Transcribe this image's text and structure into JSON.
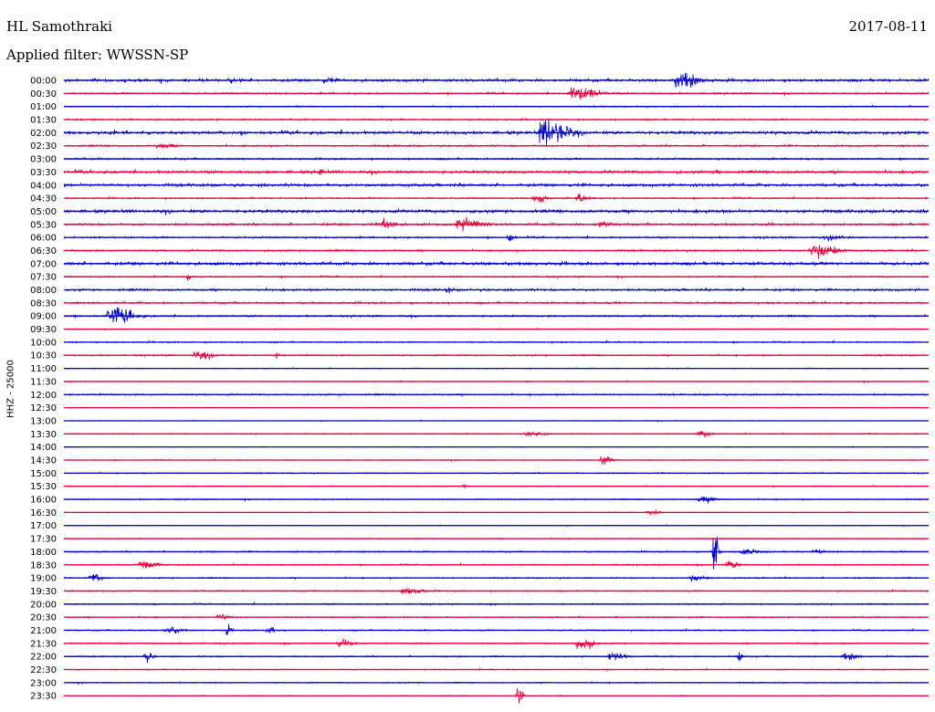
{
  "header": {
    "station": "HL Samothraki",
    "date": "2017-08-11",
    "filter": "Applied filter: WWSSN-SP"
  },
  "colors": {
    "primary_trace": "#0000cc",
    "secondary_trace": "#e8003a",
    "background": "#ffffff"
  },
  "chart_data": {
    "type": "line",
    "subtype": "helicorder-seismogram",
    "ylabel": "HHZ - 25000",
    "row_labels": [
      "00:00",
      "00:30",
      "01:00",
      "01:30",
      "02:00",
      "02:30",
      "03:00",
      "03:30",
      "04:00",
      "04:30",
      "05:00",
      "05:30",
      "06:00",
      "06:30",
      "07:00",
      "07:30",
      "08:00",
      "08:30",
      "09:00",
      "09:30",
      "10:00",
      "10:30",
      "11:00",
      "11:30",
      "12:00",
      "12:30",
      "13:00",
      "13:30",
      "14:00",
      "14:30",
      "15:00",
      "15:30",
      "16:00",
      "16:30",
      "17:00",
      "17:30",
      "18:00",
      "18:30",
      "19:00",
      "19:30",
      "20:00",
      "20:30",
      "21:00",
      "21:30",
      "22:00",
      "22:30",
      "23:00",
      "23:30"
    ],
    "row_duration_minutes": 30,
    "color_alternation": "blue, red",
    "noise_level": [
      1.2,
      0.8,
      0.6,
      0.7,
      1.4,
      0.8,
      0.8,
      1.2,
      1.3,
      0.7,
      1.4,
      1.0,
      0.8,
      0.8,
      1.4,
      0.7,
      1.0,
      0.9,
      0.8,
      0.4,
      0.6,
      0.7,
      0.4,
      0.4,
      0.7,
      0.3,
      0.3,
      0.5,
      0.3,
      0.4,
      0.5,
      0.4,
      0.5,
      0.4,
      0.3,
      0.4,
      0.6,
      0.6,
      0.6,
      0.6,
      0.6,
      0.6,
      0.6,
      0.6,
      0.6,
      0.5,
      0.5,
      0.4
    ],
    "events": [
      {
        "row": 0,
        "minute": 21.2,
        "amplitude": 7,
        "duration_min": 1.2
      },
      {
        "row": 0,
        "minute": 9.0,
        "amplitude": 2,
        "duration_min": 0.6
      },
      {
        "row": 0,
        "minute": 5.7,
        "amplitude": 1.5,
        "duration_min": 0.3
      },
      {
        "row": 1,
        "minute": 17.5,
        "amplitude": 6,
        "duration_min": 1.5
      },
      {
        "row": 4,
        "minute": 16.5,
        "amplitude": 12,
        "duration_min": 1.4
      },
      {
        "row": 5,
        "minute": 3.2,
        "amplitude": 2.5,
        "duration_min": 0.8
      },
      {
        "row": 7,
        "minute": 8.8,
        "amplitude": 2.5,
        "duration_min": 0.3
      },
      {
        "row": 7,
        "minute": 22.6,
        "amplitude": 1.5,
        "duration_min": 0.3
      },
      {
        "row": 9,
        "minute": 16.3,
        "amplitude": 5,
        "duration_min": 0.6
      },
      {
        "row": 9,
        "minute": 17.8,
        "amplitude": 4,
        "duration_min": 0.6
      },
      {
        "row": 11,
        "minute": 11.0,
        "amplitude": 5,
        "duration_min": 0.7
      },
      {
        "row": 11,
        "minute": 13.6,
        "amplitude": 5.5,
        "duration_min": 1.3
      },
      {
        "row": 11,
        "minute": 18.5,
        "amplitude": 3,
        "duration_min": 0.6
      },
      {
        "row": 12,
        "minute": 15.4,
        "amplitude": 4.5,
        "duration_min": 0.3
      },
      {
        "row": 12,
        "minute": 26.5,
        "amplitude": 2,
        "duration_min": 0.8
      },
      {
        "row": 13,
        "minute": 25.9,
        "amplitude": 7,
        "duration_min": 1.3
      },
      {
        "row": 15,
        "minute": 4.2,
        "amplitude": 2.5,
        "duration_min": 0.3
      },
      {
        "row": 16,
        "minute": 13.2,
        "amplitude": 2.5,
        "duration_min": 0.4
      },
      {
        "row": 18,
        "minute": 1.5,
        "amplitude": 8,
        "duration_min": 1.3
      },
      {
        "row": 21,
        "minute": 4.5,
        "amplitude": 3,
        "duration_min": 1.0
      },
      {
        "row": 21,
        "minute": 7.3,
        "amplitude": 2.5,
        "duration_min": 0.4
      },
      {
        "row": 27,
        "minute": 16.0,
        "amplitude": 2,
        "duration_min": 1.0
      },
      {
        "row": 27,
        "minute": 22.0,
        "amplitude": 3,
        "duration_min": 0.6
      },
      {
        "row": 29,
        "minute": 18.6,
        "amplitude": 6,
        "duration_min": 0.6
      },
      {
        "row": 31,
        "minute": 13.8,
        "amplitude": 2,
        "duration_min": 0.3
      },
      {
        "row": 32,
        "minute": 22.0,
        "amplitude": 2.5,
        "duration_min": 1.0
      },
      {
        "row": 33,
        "minute": 20.2,
        "amplitude": 2,
        "duration_min": 0.8
      },
      {
        "row": 36,
        "minute": 22.5,
        "amplitude": 24,
        "duration_min": 0.3
      },
      {
        "row": 36,
        "minute": 23.5,
        "amplitude": 3,
        "duration_min": 0.8
      },
      {
        "row": 36,
        "minute": 26.0,
        "amplitude": 3,
        "duration_min": 0.5
      },
      {
        "row": 37,
        "minute": 2.6,
        "amplitude": 3,
        "duration_min": 1.0
      },
      {
        "row": 37,
        "minute": 23.0,
        "amplitude": 4,
        "duration_min": 0.6
      },
      {
        "row": 38,
        "minute": 0.9,
        "amplitude": 4,
        "duration_min": 0.6
      },
      {
        "row": 38,
        "minute": 21.7,
        "amplitude": 3,
        "duration_min": 0.8
      },
      {
        "row": 39,
        "minute": 11.7,
        "amplitude": 3.5,
        "duration_min": 1.0
      },
      {
        "row": 41,
        "minute": 5.3,
        "amplitude": 3,
        "duration_min": 0.6
      },
      {
        "row": 42,
        "minute": 3.5,
        "amplitude": 3,
        "duration_min": 0.8
      },
      {
        "row": 42,
        "minute": 5.6,
        "amplitude": 4,
        "duration_min": 0.3
      },
      {
        "row": 42,
        "minute": 7.0,
        "amplitude": 3,
        "duration_min": 0.6
      },
      {
        "row": 43,
        "minute": 9.5,
        "amplitude": 5,
        "duration_min": 0.7
      },
      {
        "row": 43,
        "minute": 17.8,
        "amplitude": 7,
        "duration_min": 0.8
      },
      {
        "row": 44,
        "minute": 2.8,
        "amplitude": 4,
        "duration_min": 0.4
      },
      {
        "row": 44,
        "minute": 18.9,
        "amplitude": 4,
        "duration_min": 0.8
      },
      {
        "row": 44,
        "minute": 23.4,
        "amplitude": 6,
        "duration_min": 0.2
      },
      {
        "row": 44,
        "minute": 27.0,
        "amplitude": 3,
        "duration_min": 0.8
      },
      {
        "row": 47,
        "minute": 15.7,
        "amplitude": 10,
        "duration_min": 0.3
      }
    ]
  }
}
